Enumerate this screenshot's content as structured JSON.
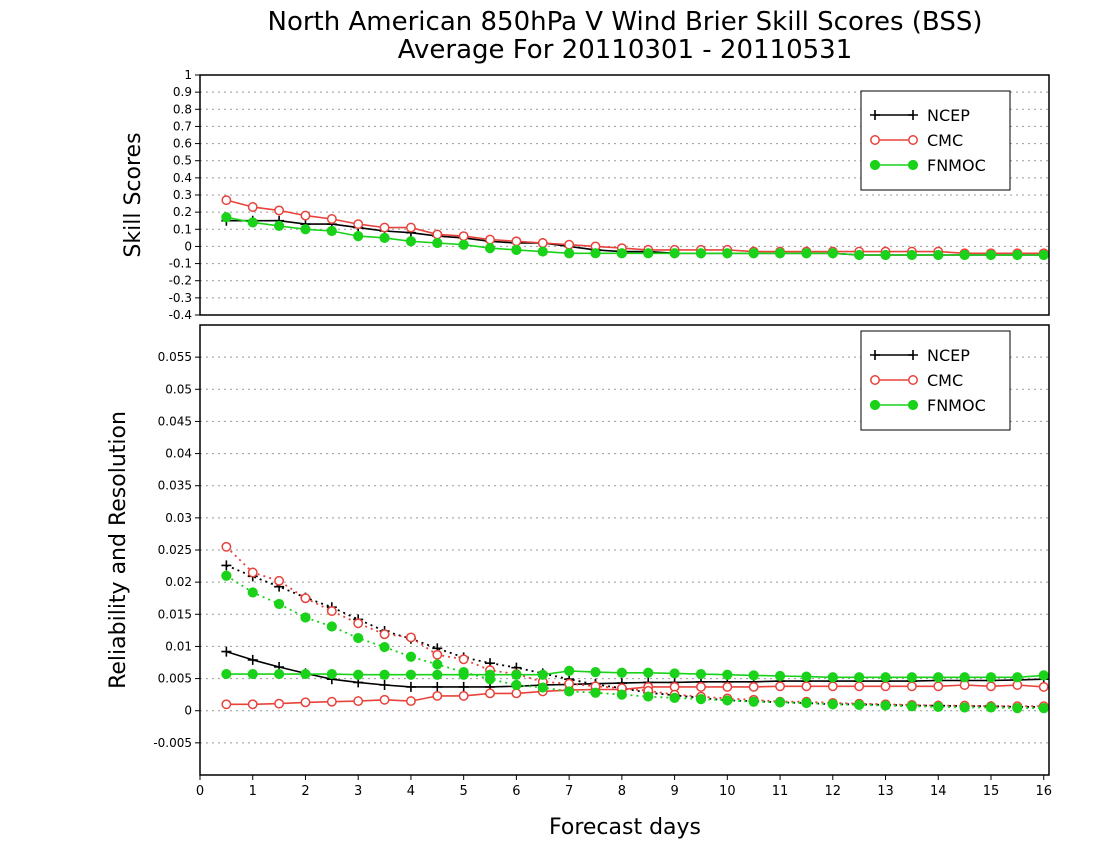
{
  "title_line1": "North American 850hPa V Wind Brier Skill Scores (BSS)",
  "title_line2": "Average For 20110301 - 20110531",
  "xlabel": "Forecast days",
  "x_ticks": [
    "0",
    "1",
    "2",
    "3",
    "4",
    "5",
    "6",
    "7",
    "8",
    "9",
    "10",
    "11",
    "12",
    "13",
    "14",
    "15",
    "16"
  ],
  "colors": {
    "NCEP": "#000000",
    "CMC": "#e8423b",
    "FNMOC": "#19d219",
    "grid": "#999999"
  },
  "chart_data": [
    {
      "type": "line",
      "ylabel": "Skill Scores",
      "xlim": [
        0,
        16.1
      ],
      "ylim": [
        -0.4,
        1
      ],
      "y_ticks": [
        "-0.4",
        "-0.3",
        "-0.2",
        "-0.1",
        "0",
        "0.1",
        "0.2",
        "0.3",
        "0.4",
        "0.5",
        "0.6",
        "0.7",
        "0.8",
        "0.9",
        "1"
      ],
      "grid": true,
      "legend": "top-right",
      "x": [
        0.5,
        1,
        1.5,
        2,
        2.5,
        3,
        3.5,
        4,
        4.5,
        5,
        5.5,
        6,
        6.5,
        7,
        7.5,
        8,
        8.5,
        9,
        9.5,
        10,
        10.5,
        11,
        11.5,
        12,
        12.5,
        13,
        13.5,
        14,
        14.5,
        15,
        15.5,
        16
      ],
      "series": [
        {
          "name": "NCEP",
          "style": "solid",
          "marker": "plus",
          "values": [
            0.15,
            0.15,
            0.15,
            0.13,
            0.13,
            0.11,
            0.09,
            0.08,
            0.06,
            0.05,
            0.03,
            0.02,
            0.02,
            0.0,
            -0.02,
            -0.03,
            -0.03,
            -0.04,
            -0.04,
            -0.04,
            -0.04,
            -0.04,
            -0.04,
            -0.04,
            -0.05,
            -0.05,
            -0.05,
            -0.05,
            -0.05,
            -0.05,
            -0.05,
            -0.05
          ]
        },
        {
          "name": "CMC",
          "style": "solid",
          "marker": "open-circle",
          "values": [
            0.27,
            0.23,
            0.21,
            0.18,
            0.16,
            0.13,
            0.11,
            0.11,
            0.07,
            0.06,
            0.04,
            0.03,
            0.02,
            0.01,
            0.0,
            -0.01,
            -0.02,
            -0.02,
            -0.02,
            -0.02,
            -0.03,
            -0.03,
            -0.03,
            -0.03,
            -0.03,
            -0.03,
            -0.03,
            -0.03,
            -0.04,
            -0.04,
            -0.04,
            -0.04
          ]
        },
        {
          "name": "FNMOC",
          "style": "solid",
          "marker": "filled-circle",
          "values": [
            0.17,
            0.14,
            0.12,
            0.1,
            0.09,
            0.06,
            0.05,
            0.03,
            0.02,
            0.01,
            -0.01,
            -0.02,
            -0.03,
            -0.04,
            -0.04,
            -0.04,
            -0.04,
            -0.04,
            -0.04,
            -0.04,
            -0.04,
            -0.04,
            -0.04,
            -0.04,
            -0.05,
            -0.05,
            -0.05,
            -0.05,
            -0.05,
            -0.05,
            -0.05,
            -0.05
          ]
        }
      ]
    },
    {
      "type": "line",
      "ylabel": "Reliability and Resolution",
      "xlim": [
        0,
        16.1
      ],
      "ylim": [
        -0.01,
        0.06
      ],
      "y_ticks": [
        "-0.005",
        "0",
        "0.005",
        "0.01",
        "0.015",
        "0.02",
        "0.025",
        "0.03",
        "0.035",
        "0.04",
        "0.045",
        "0.05",
        "0.055"
      ],
      "grid": true,
      "legend": "top-right",
      "x": [
        0.5,
        1,
        1.5,
        2,
        2.5,
        3,
        3.5,
        4,
        4.5,
        5,
        5.5,
        6,
        6.5,
        7,
        7.5,
        8,
        8.5,
        9,
        9.5,
        10,
        10.5,
        11,
        11.5,
        12,
        12.5,
        13,
        13.5,
        14,
        14.5,
        15,
        15.5,
        16
      ],
      "series": [
        {
          "name": "NCEP",
          "style": "solid",
          "marker": "plus",
          "values": [
            0.0092,
            0.0079,
            0.0068,
            0.0058,
            0.0049,
            0.0044,
            0.004,
            0.0037,
            0.0037,
            0.0037,
            0.0037,
            0.0038,
            0.004,
            0.0041,
            0.0042,
            0.0043,
            0.0044,
            0.0044,
            0.0045,
            0.0045,
            0.0045,
            0.0046,
            0.0046,
            0.0046,
            0.0046,
            0.0046,
            0.0046,
            0.0047,
            0.0047,
            0.0047,
            0.0048,
            0.0049
          ]
        },
        {
          "name": "NCEP",
          "style": "dotted",
          "marker": "plus",
          "values": [
            0.0226,
            0.0209,
            0.0193,
            0.0176,
            0.0161,
            0.0142,
            0.0124,
            0.0112,
            0.0097,
            0.0083,
            0.0074,
            0.0067,
            0.0058,
            0.0049,
            0.0041,
            0.0035,
            0.0028,
            0.0024,
            0.002,
            0.0016,
            0.0015,
            0.0013,
            0.0012,
            0.001,
            0.001,
            0.0009,
            0.0008,
            0.0008,
            0.0007,
            0.0007,
            0.0006,
            0.0006
          ]
        },
        {
          "name": "CMC",
          "style": "solid",
          "marker": "open-circle",
          "values": [
            0.001,
            0.001,
            0.0011,
            0.0013,
            0.0014,
            0.0015,
            0.0017,
            0.0015,
            0.0023,
            0.0023,
            0.0027,
            0.0027,
            0.003,
            0.0032,
            0.0033,
            0.0033,
            0.0037,
            0.0037,
            0.0037,
            0.0037,
            0.0037,
            0.0038,
            0.0038,
            0.0038,
            0.0038,
            0.0038,
            0.0038,
            0.0038,
            0.004,
            0.0038,
            0.004,
            0.0037
          ]
        },
        {
          "name": "CMC",
          "style": "dotted",
          "marker": "open-circle",
          "values": [
            0.0255,
            0.0215,
            0.0202,
            0.0175,
            0.0155,
            0.0136,
            0.0119,
            0.0114,
            0.0087,
            0.008,
            0.0063,
            0.0057,
            0.0045,
            0.0042,
            0.0038,
            0.0035,
            0.0031,
            0.0025,
            0.0022,
            0.0019,
            0.0017,
            0.0014,
            0.0014,
            0.0012,
            0.0011,
            0.001,
            0.0009,
            0.0008,
            0.0008,
            0.0007,
            0.0007,
            0.0007
          ]
        },
        {
          "name": "FNMOC",
          "style": "solid",
          "marker": "filled-circle",
          "values": [
            0.0057,
            0.0057,
            0.0057,
            0.0057,
            0.0057,
            0.0056,
            0.0056,
            0.0056,
            0.0056,
            0.0056,
            0.0056,
            0.0056,
            0.0056,
            0.0062,
            0.006,
            0.0059,
            0.0059,
            0.0058,
            0.0057,
            0.0056,
            0.0055,
            0.0054,
            0.0053,
            0.0052,
            0.0052,
            0.0052,
            0.0052,
            0.0052,
            0.0052,
            0.0052,
            0.0052,
            0.0055
          ]
        },
        {
          "name": "FNMOC",
          "style": "dotted",
          "marker": "filled-circle",
          "values": [
            0.021,
            0.0184,
            0.0166,
            0.0145,
            0.0131,
            0.0113,
            0.0099,
            0.0084,
            0.0072,
            0.006,
            0.0049,
            0.004,
            0.0036,
            0.003,
            0.0028,
            0.0025,
            0.0022,
            0.002,
            0.0018,
            0.0016,
            0.0014,
            0.0013,
            0.0012,
            0.001,
            0.0009,
            0.0008,
            0.0007,
            0.0006,
            0.0005,
            0.0005,
            0.0004,
            0.0004
          ]
        }
      ]
    }
  ]
}
